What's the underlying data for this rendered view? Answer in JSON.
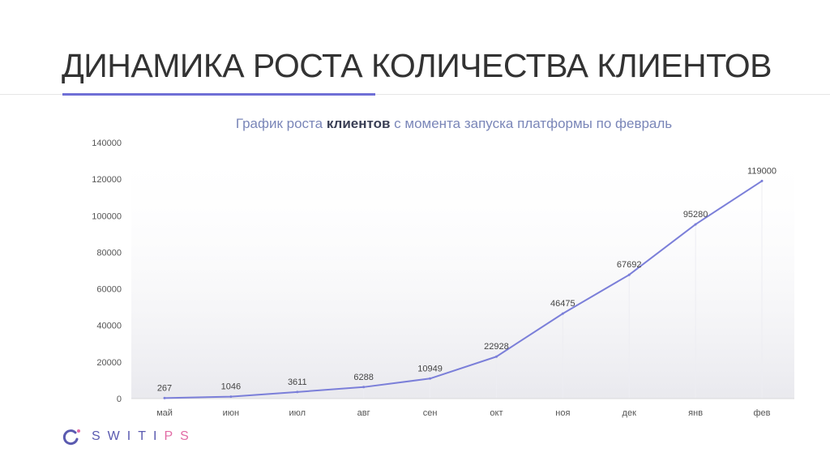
{
  "slide": {
    "title": "ДИНАМИКА РОСТА КОЛИЧЕСТВА КЛИЕНТОВ"
  },
  "colors": {
    "line": "#7b7fd9",
    "accent": "#6f6fd6",
    "logo_blue": "#5a5ab0",
    "logo_pink": "#e26ba5"
  },
  "chart_data": {
    "type": "area",
    "title_parts": {
      "before": "График роста ",
      "bold": "клиентов",
      "after": " с момента запуска платформы по февраль"
    },
    "categories": [
      "май",
      "июн",
      "июл",
      "авг",
      "сен",
      "окт",
      "ноя",
      "дек",
      "янв",
      "фев"
    ],
    "values": [
      267,
      1046,
      3611,
      6288,
      10949,
      22928,
      46475,
      67692,
      95280,
      119000
    ],
    "data_labels": [
      "267",
      "1046",
      "3611",
      "6288",
      "10949",
      "22928",
      "46475",
      "67692",
      "95280",
      "119000"
    ],
    "y_ticks": [
      0,
      20000,
      40000,
      60000,
      80000,
      100000,
      120000,
      140000
    ],
    "ylim": [
      0,
      140000
    ],
    "grid": false,
    "legend": "none"
  },
  "logo": {
    "text_main": "SWITI",
    "text_accent": "PS"
  }
}
